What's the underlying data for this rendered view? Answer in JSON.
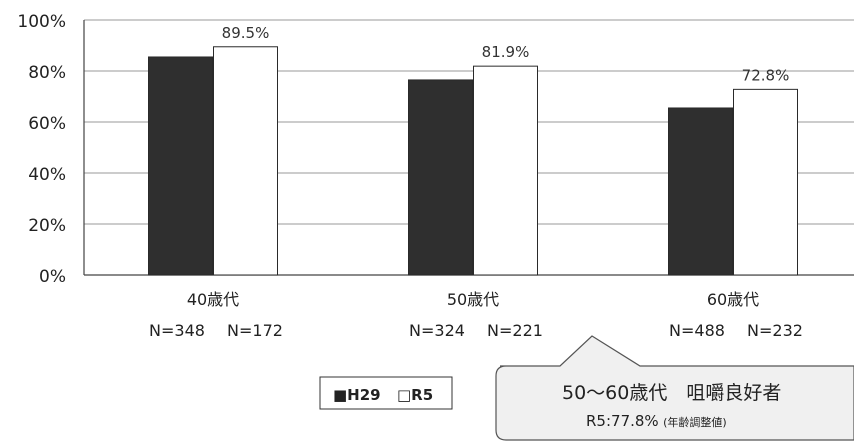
{
  "chart_data": {
    "type": "bar",
    "categories": [
      "40歳代",
      "50歳代",
      "60歳代"
    ],
    "n_labels": [
      [
        "N=348",
        "N=172"
      ],
      [
        "N=324",
        "N=221"
      ],
      [
        "N=488",
        "N=232"
      ]
    ],
    "series": [
      {
        "name": "H29",
        "values": [
          85.5,
          76.5,
          65.5
        ],
        "color": "#2f2f2f"
      },
      {
        "name": "R5",
        "values": [
          89.5,
          81.9,
          72.8
        ],
        "color": "#ffffff"
      }
    ],
    "data_labels": [
      "89.5%",
      "81.9%",
      "72.8%"
    ],
    "y_ticks": [
      "0%",
      "20%",
      "40%",
      "60%",
      "80%",
      "100%"
    ],
    "ylim": [
      0,
      100
    ],
    "grid": true,
    "legend": {
      "position": "bottom-left",
      "items": [
        "■H29",
        "□R5"
      ]
    },
    "callout": {
      "title": "50～60歳代　咀嚼良好者",
      "subtitle_main": "R5:77.8%",
      "subtitle_note": "(年齢調整値)"
    }
  }
}
